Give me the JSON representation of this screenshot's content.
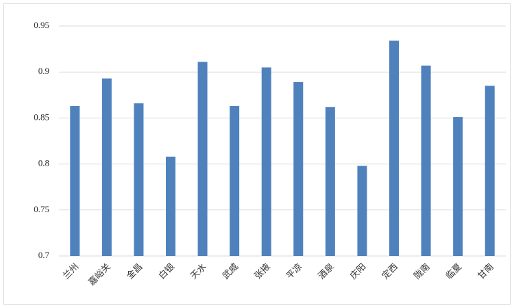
{
  "chart_data": {
    "type": "bar",
    "categories": [
      "兰州",
      "嘉峪关",
      "金昌",
      "白银",
      "天水",
      "武威",
      "张掖",
      "平凉",
      "酒泉",
      "庆阳",
      "定西",
      "陇南",
      "临夏",
      "甘南"
    ],
    "values": [
      0.863,
      0.893,
      0.866,
      0.808,
      0.911,
      0.863,
      0.905,
      0.889,
      0.862,
      0.798,
      0.934,
      0.907,
      0.851,
      0.885
    ],
    "color": "#4f81bd",
    "ylim": [
      0.7,
      0.95
    ],
    "yticks": [
      0.7,
      0.75,
      0.8,
      0.85,
      0.9,
      0.95
    ],
    "grid": true
  }
}
